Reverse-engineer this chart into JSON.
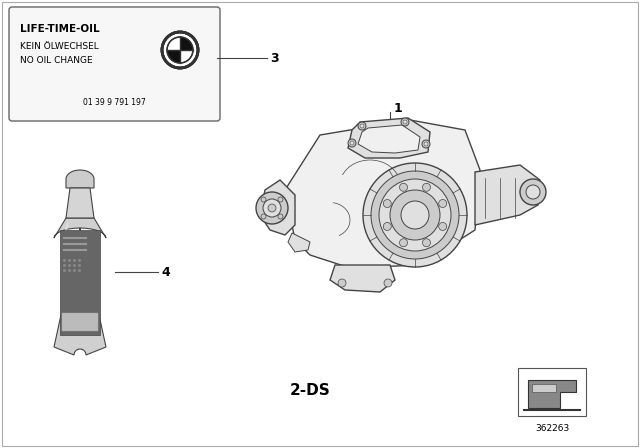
{
  "background_color": "#ffffff",
  "text_color": "#000000",
  "label_1": "1",
  "label_3": "3",
  "label_4": "4",
  "label_2ds": "2-DS",
  "part_number": "362263",
  "sticker_title": "LIFE-TIME-OIL",
  "sticker_line1": "KEIN ÖLWECHSEL",
  "sticker_line2": "NO OIL CHANGE",
  "sticker_part": "01 39 9 791 197",
  "line_color": "#444444",
  "line_color_light": "#888888",
  "bottle_body_light": "#d8d8d8",
  "bottle_body_dark": "#b0b0b0",
  "bottle_label_dark": "#555555",
  "bottle_label_mid": "#777777"
}
